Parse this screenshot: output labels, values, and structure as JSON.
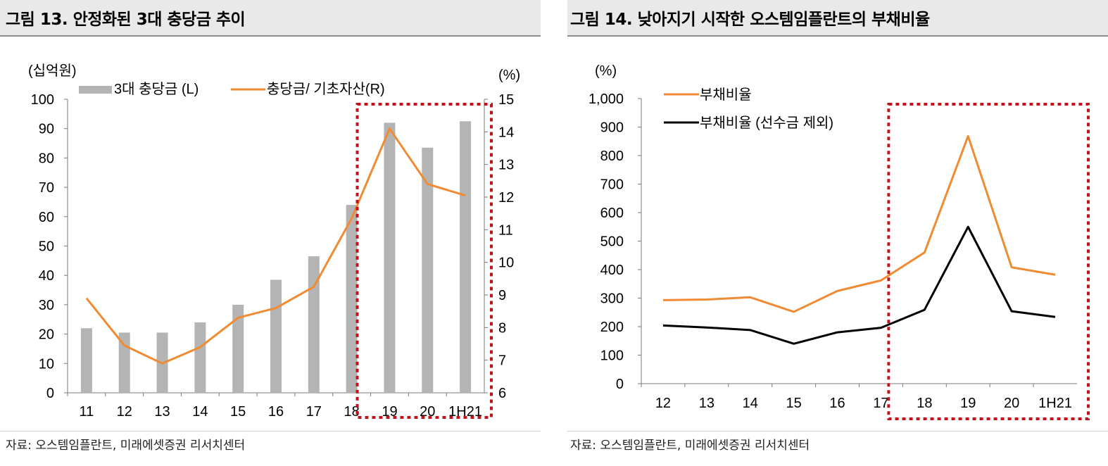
{
  "left": {
    "title": "그림 13. 안정화된 3대 충당금 추이",
    "source": "자료: 오스템임플란트, 미래에셋증권 리서치센터"
  },
  "right": {
    "title": "그림 14. 낮아지기 시작한 오스템임플란트의 부채비율",
    "source": "자료: 오스템임플란트, 미래에셋증권 리서치센터"
  },
  "chart_data": [
    {
      "type": "bar+line",
      "title": "그림 13. 안정화된 3대 충당금 추이",
      "categories": [
        "11",
        "12",
        "13",
        "14",
        "15",
        "16",
        "17",
        "18",
        "19",
        "20",
        "1H21"
      ],
      "y_left_unit": "(십억원)",
      "y_right_unit": "(%)",
      "ylim_left": [
        0,
        100
      ],
      "ylim_right": [
        6,
        15
      ],
      "y_left_ticks": [
        "0",
        "10",
        "20",
        "30",
        "40",
        "50",
        "60",
        "70",
        "80",
        "90",
        "100"
      ],
      "y_right_ticks": [
        "6",
        "7",
        "8",
        "9",
        "10",
        "11",
        "12",
        "13",
        "14",
        "15"
      ],
      "series": [
        {
          "name": "3대 충당금 (L)",
          "type": "bar",
          "axis": "left",
          "color": "#b4b4b4",
          "values": [
            22,
            20.5,
            20.5,
            24,
            30,
            38.5,
            46.5,
            64,
            92,
            83.5,
            92.5
          ]
        },
        {
          "name": "충당금/ 기초자산(R)",
          "type": "line",
          "axis": "right",
          "color": "#f08a33",
          "values": [
            8.9,
            7.45,
            6.9,
            7.4,
            8.3,
            8.6,
            9.25,
            11.35,
            14.1,
            12.4,
            12.05
          ]
        }
      ],
      "highlight_categories": [
        "19",
        "20",
        "1H21"
      ],
      "highlight_color": "#c0141c",
      "legend_position": "top"
    },
    {
      "type": "line",
      "title": "그림 14. 낮아지기 시작한 오스템임플란트의 부채비율",
      "categories": [
        "12",
        "13",
        "14",
        "15",
        "16",
        "17",
        "18",
        "19",
        "20",
        "1H21"
      ],
      "y_unit": "(%)",
      "ylim": [
        0,
        1000
      ],
      "y_ticks": [
        "0",
        "100",
        "200",
        "300",
        "400",
        "500",
        "600",
        "700",
        "800",
        "900",
        "1,000"
      ],
      "series": [
        {
          "name": "부채비율",
          "color": "#f08a33",
          "values": [
            293,
            295,
            303,
            252,
            325,
            362,
            460,
            868,
            408,
            382
          ]
        },
        {
          "name": "부채비율 (선수금 제외)",
          "color": "#000000",
          "values": [
            204,
            197,
            188,
            140,
            180,
            196,
            259,
            550,
            254,
            234
          ]
        }
      ],
      "highlight_categories": [
        "18",
        "19",
        "20",
        "1H21"
      ],
      "highlight_color": "#c0141c",
      "legend_position": "top-left"
    }
  ]
}
